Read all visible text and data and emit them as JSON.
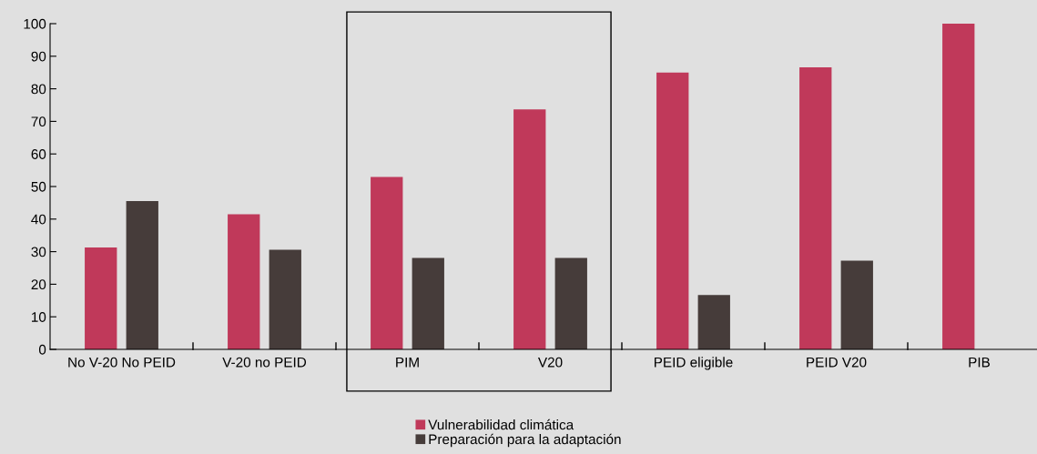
{
  "chart_data": {
    "type": "bar",
    "categories": [
      "No V-20 No PEID",
      "V-20 no PEID",
      "PIM",
      "V20",
      "PEID eligible",
      "PEID V20",
      "PIB"
    ],
    "series": [
      {
        "name": "Vulnerabilidad climática",
        "color": "#c0395a",
        "values": [
          31.3,
          41.5,
          52.9,
          73.7,
          85.0,
          86.6,
          100
        ]
      },
      {
        "name": "Preparación para la adaptación",
        "color": "#463c3a",
        "values": [
          45.5,
          30.6,
          28.1,
          28.1,
          16.7,
          27.2,
          null
        ]
      }
    ],
    "ylim": [
      0,
      100
    ],
    "yticks": [
      0,
      10,
      20,
      30,
      40,
      50,
      60,
      70,
      80,
      90,
      100
    ],
    "grid": false,
    "legend": "bottom"
  }
}
